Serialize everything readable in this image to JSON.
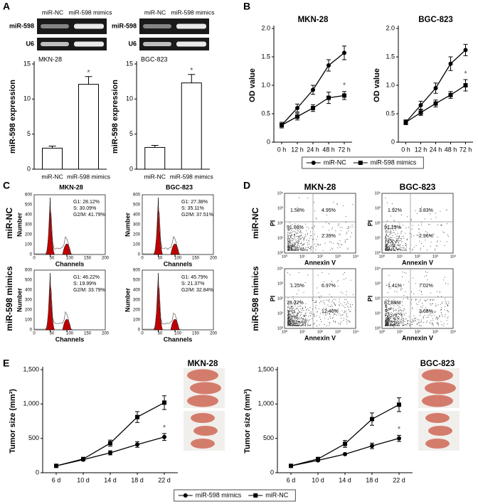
{
  "panel_labels": [
    "A",
    "B",
    "C",
    "D",
    "E"
  ],
  "gels": [
    {
      "columns": [
        "miR-NC",
        "miR-598 mimics"
      ],
      "rows": [
        "miR-598",
        "U6"
      ]
    },
    {
      "columns": [
        "miR-NC",
        "miR-598 mimics"
      ],
      "rows": [
        "miR-598",
        "U6"
      ]
    }
  ],
  "chart_data": [
    {
      "type": "bar",
      "title": "MKN-28",
      "ylabel": "miR-598 expression",
      "categories": [
        "miR-NC",
        "miR-598 mimics"
      ],
      "values": [
        3.0,
        12.1
      ],
      "errors": [
        0.3,
        1.1
      ],
      "color": "#ffffff",
      "ylim": [
        0,
        15
      ],
      "yticks": [
        0,
        5,
        10,
        15
      ],
      "annotation": "*"
    },
    {
      "type": "bar",
      "title": "BGC-823",
      "ylabel": "miR-598 expression",
      "categories": [
        "miR-NC",
        "miR-598 mimics"
      ],
      "values": [
        3.1,
        12.3
      ],
      "errors": [
        0.3,
        1.2
      ],
      "color": "#ffffff",
      "ylim": [
        0,
        15
      ],
      "yticks": [
        0,
        5,
        10,
        15
      ],
      "annotation": "*"
    },
    {
      "type": "line",
      "title": "MKN-28",
      "ylabel": "OD value",
      "categories": [
        "0 h",
        "12 h",
        "24 h",
        "48 h",
        "72 h"
      ],
      "series": [
        {
          "name": "miR-NC",
          "marker": "circle",
          "color": "#000000",
          "values": [
            0.3,
            0.6,
            0.92,
            1.35,
            1.57
          ],
          "errors": [
            0.05,
            0.07,
            0.08,
            0.1,
            0.12
          ]
        },
        {
          "name": "miR-598 mimics",
          "marker": "square",
          "color": "#000000",
          "values": [
            0.3,
            0.45,
            0.6,
            0.78,
            0.82
          ],
          "errors": [
            0.05,
            0.06,
            0.06,
            0.1,
            0.07
          ]
        }
      ],
      "ylim": [
        0,
        2
      ],
      "yticks": [
        0,
        0.5,
        {
          "value": 1,
          "label": "1.0"
        },
        1.5,
        {
          "value": 2,
          "label": "2.0"
        }
      ],
      "annotation": "*"
    },
    {
      "type": "line",
      "title": "BGC-823",
      "ylabel": "OD value",
      "categories": [
        "0 h",
        "12 h",
        "24 h",
        "48 h",
        "72 h"
      ],
      "series": [
        {
          "marker": "circle",
          "color": "#000000",
          "values": [
            0.35,
            0.65,
            0.95,
            1.38,
            1.62
          ],
          "errors": [
            0.04,
            0.07,
            0.09,
            0.12,
            0.1
          ]
        },
        {
          "marker": "square",
          "color": "#000000",
          "values": [
            0.35,
            0.52,
            0.68,
            0.83,
            1.0
          ],
          "errors": [
            0.04,
            0.05,
            0.06,
            0.06,
            0.1
          ]
        }
      ],
      "ylim": [
        0,
        2
      ],
      "yticks": [
        0,
        0.5,
        {
          "value": 1,
          "label": "1.0"
        },
        1.5,
        {
          "value": 2,
          "label": "2.0"
        }
      ],
      "annotation": "*"
    },
    {
      "type": "line",
      "title": "MKN-28",
      "ylabel": "Tumor size (mm³)",
      "categories": [
        "6 d",
        "10 d",
        "14 d",
        "18 d",
        "22 d"
      ],
      "series": [
        {
          "name": "miR-598 mimics",
          "marker": "circle",
          "color": "#000000",
          "values": [
            100,
            190,
            290,
            410,
            520
          ],
          "errors": [
            10,
            15,
            30,
            40,
            50
          ]
        },
        {
          "name": "miR-NC",
          "marker": "square",
          "color": "#000000",
          "values": [
            100,
            200,
            430,
            810,
            1020
          ],
          "errors": [
            10,
            15,
            45,
            80,
            100
          ]
        }
      ],
      "ylim": [
        0,
        1500
      ],
      "yticks": [
        0,
        500,
        {
          "value": 1000,
          "label": "1,000"
        },
        {
          "value": 1500,
          "label": "1,500"
        }
      ],
      "annotation": "*"
    },
    {
      "type": "line",
      "title": "BGC-823",
      "ylabel": "Tumor size (mm³)",
      "categories": [
        "6 d",
        "10 d",
        "14 d",
        "18 d",
        "22 d"
      ],
      "series": [
        {
          "marker": "circle",
          "color": "#000000",
          "values": [
            100,
            180,
            270,
            390,
            500
          ],
          "errors": [
            10,
            15,
            10,
            40,
            45
          ]
        },
        {
          "marker": "square",
          "color": "#000000",
          "values": [
            100,
            200,
            420,
            780,
            990
          ],
          "errors": [
            10,
            15,
            50,
            90,
            100
          ]
        }
      ],
      "ylim": [
        0,
        1500
      ],
      "yticks": [
        0,
        500,
        {
          "value": 1000,
          "label": "1,000"
        },
        {
          "value": 1500,
          "label": "1,500"
        }
      ],
      "annotation": "*"
    }
  ],
  "flow_cycle": {
    "columns": [
      "MKN-28",
      "BGC-823"
    ],
    "rows": [
      "miR-NC",
      "miR-598 mimics"
    ],
    "ylabel": "Number",
    "xlabel": "Channels",
    "yticks": [
      0,
      100,
      200,
      300,
      400,
      500,
      600
    ],
    "xticks": [
      0,
      50,
      100,
      150,
      200
    ],
    "stats": [
      [
        [
          "G1: 28.12%",
          "S: 30.09%",
          "G2/M: 41.79%"
        ],
        [
          "G1: 27.38%",
          "S: 35.11%",
          "G2/M: 37.51%"
        ]
      ],
      [
        [
          "G1: 46.22%",
          "S: 19.99%",
          "G2/M: 33.79%"
        ],
        [
          "G1: 45.79%",
          "S: 21.37%",
          "G2/M: 32.84%"
        ]
      ]
    ]
  },
  "flow_apoptosis": {
    "columns": [
      "MKN-28",
      "BGC-823"
    ],
    "rows": [
      "miR-NC",
      "miR-598 mimics"
    ],
    "ylabel": "PI",
    "xlabel": "Annexin V",
    "ticks": [
      "10⁰",
      "10¹",
      "10²",
      "10³",
      "10⁴"
    ],
    "quadrants": [
      [
        [
          "1.58%",
          "4.95%",
          "91.08%",
          "2.39%"
        ],
        [
          "1.92%",
          "3.83%",
          "91.29%",
          "2.96%"
        ]
      ],
      [
        [
          "1.25%",
          "6.97%",
          "79.32%",
          "12.46%"
        ],
        [
          "1.41%",
          "7.02%",
          "87.89%",
          "3.68%"
        ]
      ]
    ]
  }
}
